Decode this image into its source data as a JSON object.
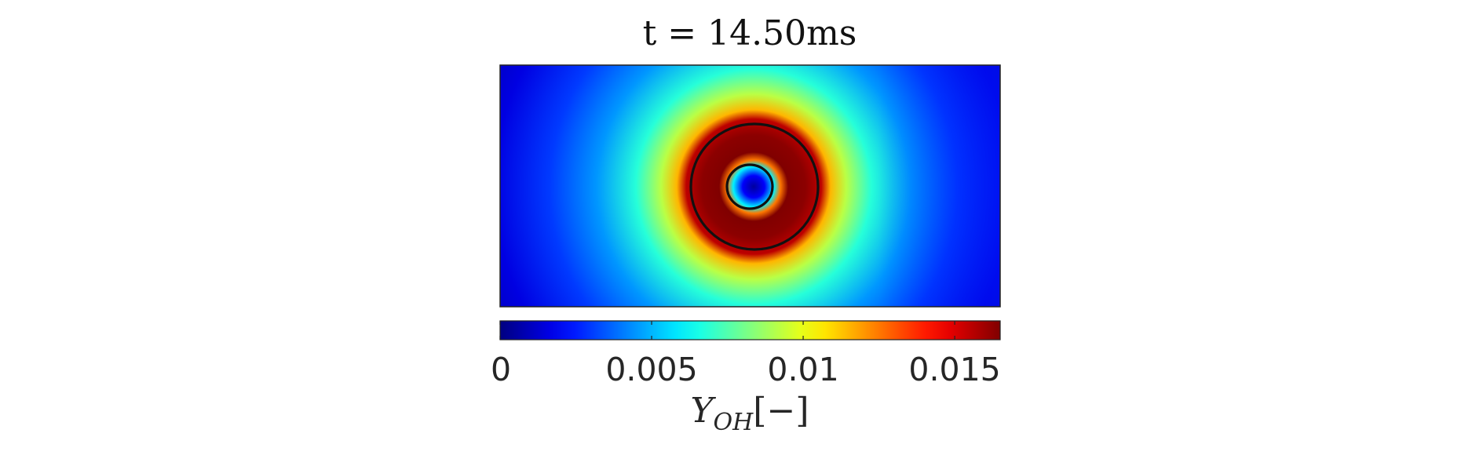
{
  "chart_data": {
    "type": "heatmap",
    "title": "t = 14.50ms",
    "colormap": "jet",
    "colorbar": {
      "label_base": "Y",
      "label_subscript": "OH",
      "label_unit": "[−]",
      "range": [
        0,
        0.0165
      ],
      "ticks": [
        {
          "value": 0,
          "label": "0"
        },
        {
          "value": 0.005,
          "label": "0.005"
        },
        {
          "value": 0.01,
          "label": "0.01"
        },
        {
          "value": 0.015,
          "label": "0.015"
        }
      ],
      "placement": "bottom"
    },
    "field": {
      "description_values": {
        "background_min": 0.0005,
        "peak": 0.0165,
        "center_value": 0.0005,
        "outer_background_right": 0.0025
      }
    },
    "contours": [
      {
        "name": "outer-flame-contour"
      },
      {
        "name": "inner-flame-contour"
      }
    ],
    "axes_visible": false
  }
}
